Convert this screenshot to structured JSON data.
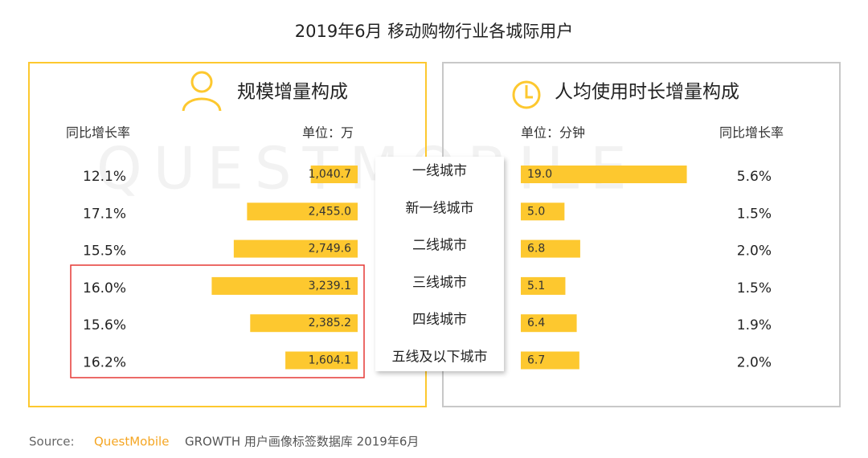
{
  "title": "2019年6月 移动购物行业各城际用户",
  "watermark": "QUESTMOBILE",
  "categories": [
    "一线城市",
    "新一线城市",
    "二线城市",
    "三线城市",
    "四线城市",
    "五线及以下城市"
  ],
  "chart_data": [
    {
      "type": "bar",
      "title": "规模增量构成",
      "unit": "单位：万",
      "growth_header": "同比增长率",
      "values": [
        1040.7,
        2455.0,
        2749.6,
        3239.1,
        2385.2,
        1604.1
      ],
      "value_labels": [
        "1,040.7",
        "2,455.0",
        "2,749.6",
        "3,239.1",
        "2,385.2",
        "1,604.1"
      ],
      "growth": [
        "12.1%",
        "17.1%",
        "15.5%",
        "16.0%",
        "15.6%",
        "16.2%"
      ],
      "color": "#fdc82f",
      "xlim": [
        0,
        3300
      ]
    },
    {
      "type": "bar",
      "title": "人均使用时长增量构成",
      "unit": "单位：分钟",
      "growth_header": "同比增长率",
      "values": [
        19.0,
        5.0,
        6.8,
        5.1,
        6.4,
        6.7
      ],
      "value_labels": [
        "19.0",
        "5.0",
        "6.8",
        "5.1",
        "6.4",
        "6.7"
      ],
      "growth": [
        "5.6%",
        "1.5%",
        "2.0%",
        "1.5%",
        "1.9%",
        "2.0%"
      ],
      "color": "#fdc82f",
      "xlim": [
        0,
        19.5
      ]
    }
  ],
  "source": {
    "label": "Source:",
    "brand": "QuestMobile",
    "text": "GROWTH 用户画像标签数据库 2019年6月"
  }
}
